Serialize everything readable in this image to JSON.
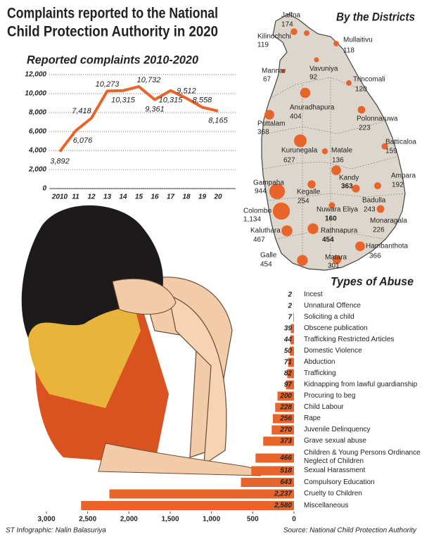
{
  "header": {
    "title": [
      "Complaints reported to the National",
      "Child Protection Authority  in 2020"
    ]
  },
  "chart_data": [
    {
      "type": "line",
      "title": "Reported complaints 2010-2020",
      "categories": [
        "2010",
        "11",
        "12",
        "13",
        "14",
        "15",
        "16",
        "17",
        "18",
        "19",
        "20"
      ],
      "values": [
        3892,
        6076,
        7418,
        10273,
        10315,
        10732,
        9361,
        10315,
        9512,
        8558,
        8165
      ],
      "value_labels": [
        "3,892",
        "6,076",
        "7,418",
        "10,273",
        "10,315",
        "10,732",
        "9,361",
        "10,315",
        "9,512",
        "8,558",
        "8,165"
      ],
      "color": "#e8642a",
      "ylim": [
        0,
        12000
      ],
      "yticks": [
        0,
        {
          "value": 2000,
          "label": "2,000"
        },
        {
          "value": 4000,
          "label": "4,000"
        },
        {
          "value": 6000,
          "label": "6,000"
        },
        {
          "value": 8000,
          "label": "8,000"
        },
        {
          "value": 10000,
          "label": "10,000"
        },
        {
          "value": 12000,
          "label": "12,000"
        }
      ],
      "grid": true
    },
    {
      "type": "bubble-map",
      "title": "By the Districts",
      "categories": [
        "Jaffna",
        "Kilinochchi",
        "Mullaitivu",
        "Mannar",
        "Vavuniya",
        "Trincomali",
        "Anuradhapura",
        "Polonnaruwa",
        "Puttalam",
        "Batticaloa",
        "Kurunegala",
        "Matale",
        "Kandy",
        "Ampara",
        "Gampaha",
        "Kegalle",
        "Nuwara Eliya",
        "Badulla",
        "Colombo",
        "Kaluthara",
        "Rathnapura",
        "Monaragala",
        "Hambanthota",
        "Galle",
        "Matara"
      ],
      "values": [
        174,
        119,
        118,
        67,
        92,
        120,
        404,
        223,
        368,
        159,
        627,
        136,
        363,
        192,
        944,
        254,
        160,
        243,
        1134,
        467,
        454,
        226,
        366,
        454,
        301
      ],
      "value_labels": [
        "174",
        "119",
        "118",
        "67",
        "92",
        "120",
        "404",
        "223",
        "368",
        "159",
        "627",
        "136",
        "363",
        "192",
        "944",
        "254",
        "160",
        "243",
        "1,134",
        "467",
        "454",
        "226",
        "366",
        "454",
        "301"
      ],
      "color": "#e8642a"
    },
    {
      "type": "hbar",
      "title": "Types of Abuse",
      "categories": [
        "Incest",
        "Unnatural Offence",
        "Soliciting a child",
        "Obscene publication",
        "Trafficking Restricted Articles",
        "Domestic Violence",
        "Abduction",
        "Trafficking",
        "Kidnapping from lawful guardianship",
        "Procuring to beg",
        "Child Labour",
        "Rape",
        "Juvenile Delinquency",
        "Grave sexual abuse",
        "Children & Young Persons Ordinance Neglect of Children",
        "Sexual Harassment",
        "Compulsory Education",
        "Cruelty to Children",
        "Miscellaneous"
      ],
      "values": [
        2,
        2,
        7,
        39,
        44,
        50,
        71,
        82,
        97,
        200,
        228,
        256,
        270,
        373,
        466,
        518,
        643,
        2237,
        2580
      ],
      "value_labels": [
        "2",
        "2",
        "7",
        "39",
        "44",
        "50",
        "71",
        "82",
        "97",
        "200",
        "228",
        "256",
        "270",
        "373",
        "466",
        "518",
        "643",
        "2,237",
        "2,580"
      ],
      "color": "#e8642a",
      "xlim": [
        0,
        3000
      ],
      "x_reversed": true,
      "xticks": [
        0,
        500,
        {
          "value": 1000,
          "label": "1,000"
        },
        {
          "value": 1500,
          "label": "1,500"
        },
        {
          "value": 2000,
          "label": "2,000"
        },
        {
          "value": 2500,
          "label": "2,500"
        },
        {
          "value": 3000,
          "label": "3,000"
        }
      ]
    }
  ],
  "footer": {
    "credit": "ST Infographic: Nalin Balasuriya",
    "source": "Source: National Child Protection Authority"
  }
}
